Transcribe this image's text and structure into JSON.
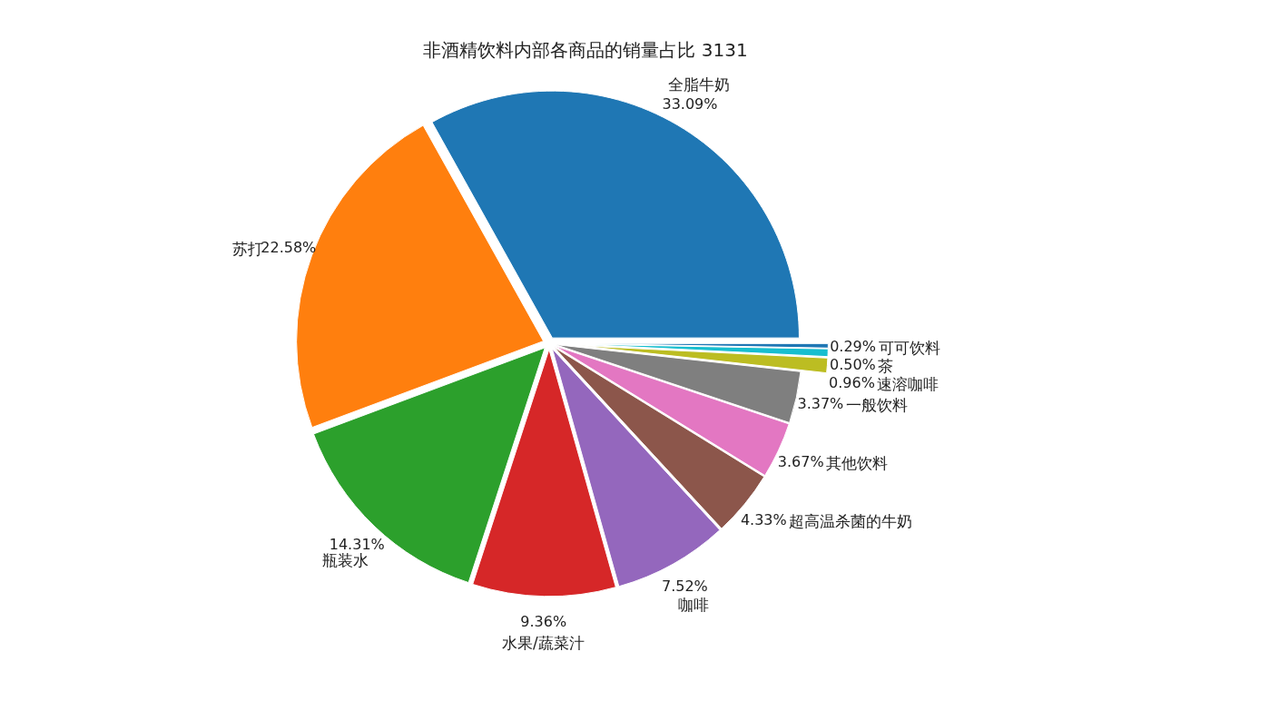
{
  "chart_data": {
    "type": "pie",
    "title": "非酒精饮料内部各商品的销量占比 3131",
    "categories": [
      "全脂牛奶",
      "苏打",
      "瓶装水",
      "水果/蔬菜汁",
      "咖啡",
      "超高温杀菌的牛奶",
      "其他饮料",
      "一般饮料",
      "速溶咖啡",
      "茶",
      "可可饮料"
    ],
    "values": [
      33.09,
      22.58,
      14.31,
      9.36,
      7.52,
      4.33,
      3.67,
      3.37,
      0.96,
      0.5,
      0.29
    ],
    "colors": [
      "#1f77b4",
      "#ff7f0e",
      "#2ca02c",
      "#d62728",
      "#9467bd",
      "#8c564b",
      "#e377c2",
      "#7f7f7f",
      "#bcbd22",
      "#17becf",
      "#1f77b4"
    ],
    "value_labels": [
      "33.09%",
      "22.58%",
      "14.31%",
      "9.36%",
      "7.52%",
      "4.33%",
      "3.67%",
      "3.37%",
      "0.96%",
      "0.50%",
      "0.29%"
    ]
  }
}
